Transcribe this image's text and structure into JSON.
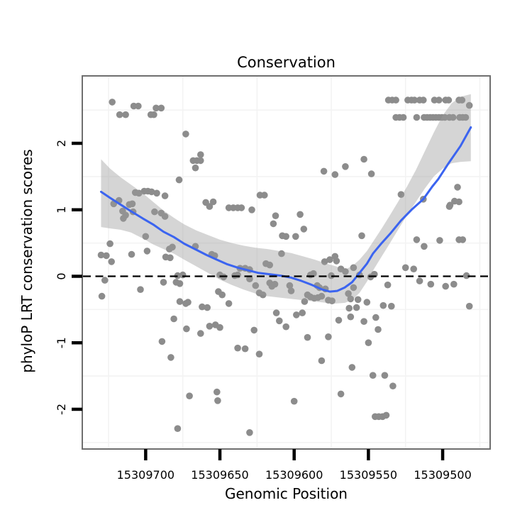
{
  "title": "Conservation",
  "x_axis": {
    "label": "Genomic Position",
    "ticks": [
      15309700,
      15309650,
      15309600,
      15309550,
      15309500
    ],
    "tick_labels": [
      "15309700",
      "15309650",
      "15309600",
      "15309550",
      "15309500"
    ],
    "reversed": true,
    "domain_left": 15309742.2,
    "domain_right": 15309468.5,
    "minor_gridlines": [
      15309725,
      15309675,
      15309625,
      15309575,
      15309525,
      15309475
    ]
  },
  "y_axis": {
    "label": "phyloP LRT conservation scores",
    "ticks": [
      2,
      1,
      0,
      -1,
      -2
    ],
    "tick_labels": [
      "2",
      "1",
      "0",
      "-1",
      "-2"
    ],
    "domain_top": 3.003,
    "domain_bottom": -2.587,
    "minor_gridlines": [
      2.5,
      1.5,
      0.5,
      -0.5,
      -1.5,
      -2.5
    ]
  },
  "colors": {
    "background": "#ffffff",
    "panel_border": "#6f6f6f",
    "gridline": "#f3f3f3",
    "point": "#8c8c8c",
    "smooth_line": "#3b64f0",
    "ribbon": "#9c9c9c",
    "reference_line": "#000000",
    "tick_mark": "#000000",
    "text": "#000000"
  },
  "chart_data": {
    "type": "scatter",
    "title": "Conservation",
    "xlabel": "Genomic Position",
    "ylabel": "phyloP LRT conservation scores",
    "x_reversed": true,
    "xlim": [
      15309742.2,
      15309468.5
    ],
    "ylim": [
      -2.587,
      3.003
    ],
    "reference_line_y": 0,
    "points": [
      [
        15309722.5,
        2.62
      ],
      [
        15309717.5,
        2.43
      ],
      [
        15309713.5,
        2.43
      ],
      [
        15309708,
        2.56
      ],
      [
        15309705,
        2.56
      ],
      [
        15309696.5,
        2.43
      ],
      [
        15309694.5,
        2.43
      ],
      [
        15309693,
        2.53
      ],
      [
        15309689.5,
        2.53
      ],
      [
        15309673,
        2.14
      ],
      [
        15309663,
        1.83
      ],
      [
        15309668,
        1.74
      ],
      [
        15309665.5,
        1.74
      ],
      [
        15309663,
        1.74
      ],
      [
        15309666.5,
        1.63
      ],
      [
        15309677.5,
        1.45
      ],
      [
        15309707,
        1.26
      ],
      [
        15309704.5,
        1.25
      ],
      [
        15309701,
        1.28
      ],
      [
        15309698.5,
        1.28
      ],
      [
        15309696,
        1.27
      ],
      [
        15309692.5,
        1.25
      ],
      [
        15309687,
        1.21
      ],
      [
        15309623,
        1.22
      ],
      [
        15309620,
        1.22
      ],
      [
        15309580,
        1.58
      ],
      [
        15309572.5,
        1.53
      ],
      [
        15309565.5,
        1.65
      ],
      [
        15309553,
        1.76
      ],
      [
        15309548,
        1.54
      ],
      [
        15309536.5,
        2.65
      ],
      [
        15309534,
        2.65
      ],
      [
        15309531.5,
        2.65
      ],
      [
        15309523.5,
        2.65
      ],
      [
        15309521,
        2.65
      ],
      [
        15309519,
        2.65
      ],
      [
        15309515.5,
        2.65
      ],
      [
        15309513,
        2.65
      ],
      [
        15309505.5,
        2.65
      ],
      [
        15309502.5,
        2.65
      ],
      [
        15309498,
        2.65
      ],
      [
        15309496,
        2.65
      ],
      [
        15309489,
        2.65
      ],
      [
        15309487,
        2.65
      ],
      [
        15309482,
        2.57
      ],
      [
        15309531.5,
        2.39
      ],
      [
        15309529,
        2.39
      ],
      [
        15309526.5,
        2.39
      ],
      [
        15309517.5,
        2.39
      ],
      [
        15309512.5,
        2.39
      ],
      [
        15309510.5,
        2.39
      ],
      [
        15309508.5,
        2.39
      ],
      [
        15309506.5,
        2.39
      ],
      [
        15309504.5,
        2.39
      ],
      [
        15309502.5,
        2.39
      ],
      [
        15309500.5,
        2.39
      ],
      [
        15309498.5,
        2.39
      ],
      [
        15309495.5,
        2.39
      ],
      [
        15309493,
        2.39
      ],
      [
        15309488.5,
        2.39
      ],
      [
        15309486.5,
        2.39
      ],
      [
        15309484.5,
        2.39
      ],
      [
        15309490,
        1.34
      ],
      [
        15309492,
        1.13
      ],
      [
        15309495.5,
        1.05
      ],
      [
        15309489,
        1.12
      ],
      [
        15309495,
        1.07
      ],
      [
        15309513,
        1.16
      ],
      [
        15309528,
        1.23
      ],
      [
        15309502,
        0.54
      ],
      [
        15309489,
        0.55
      ],
      [
        15309486.5,
        0.55
      ],
      [
        15309554.5,
        0.61
      ],
      [
        15309517.5,
        0.55
      ],
      [
        15309512.5,
        0.45
      ],
      [
        15309721.5,
        1.09
      ],
      [
        15309718,
        1.14
      ],
      [
        15309711,
        1.08
      ],
      [
        15309709,
        1.09
      ],
      [
        15309715.5,
        0.98
      ],
      [
        15309713.5,
        0.92
      ],
      [
        15309715,
        0.87
      ],
      [
        15309708.5,
        0.97
      ],
      [
        15309694,
        0.97
      ],
      [
        15309689.5,
        0.95
      ],
      [
        15309687,
        0.9
      ],
      [
        15309644,
        1.03
      ],
      [
        15309641,
        1.03
      ],
      [
        15309638,
        1.03
      ],
      [
        15309635.5,
        1.03
      ],
      [
        15309628.5,
        1.0
      ],
      [
        15309659.5,
        1.11
      ],
      [
        15309657,
        1.05
      ],
      [
        15309654.5,
        1.12
      ],
      [
        15309612.5,
        0.91
      ],
      [
        15309596,
        0.93
      ],
      [
        15309614,
        0.79
      ],
      [
        15309593.5,
        0.71
      ],
      [
        15309608,
        0.61
      ],
      [
        15309605.5,
        0.6
      ],
      [
        15309599,
        0.6
      ],
      [
        15309700,
        0.6
      ],
      [
        15309724,
        0.49
      ],
      [
        15309730,
        0.32
      ],
      [
        15309726.5,
        0.31
      ],
      [
        15309723,
        0.22
      ],
      [
        15309709.5,
        0.33
      ],
      [
        15309699,
        0.38
      ],
      [
        15309684,
        0.41
      ],
      [
        15309682,
        0.44
      ],
      [
        15309686.5,
        0.29
      ],
      [
        15309683.5,
        0.28
      ],
      [
        15309666.5,
        0.45
      ],
      [
        15309655.5,
        0.33
      ],
      [
        15309653.5,
        0.31
      ],
      [
        15309619,
        0.19
      ],
      [
        15309616.5,
        0.17
      ],
      [
        15309572.5,
        0.3
      ],
      [
        15309576,
        0.25
      ],
      [
        15309579.5,
        0.22
      ],
      [
        15309571.5,
        0.23
      ],
      [
        15309568.5,
        0.11
      ],
      [
        15309565.5,
        0.07
      ],
      [
        15309678.5,
        0.01
      ],
      [
        15309675,
        0.02
      ],
      [
        15309727.5,
        -0.06
      ],
      [
        15309688,
        -0.09
      ],
      [
        15309679.5,
        -0.09
      ],
      [
        15309677,
        -0.11
      ],
      [
        15309703.5,
        -0.2
      ],
      [
        15309729.5,
        -0.3
      ],
      [
        15309677,
        -0.38
      ],
      [
        15309673,
        -0.41
      ],
      [
        15309671.5,
        -0.39
      ],
      [
        15309662,
        -0.46
      ],
      [
        15309658.5,
        -0.47
      ],
      [
        15309681,
        -0.64
      ],
      [
        15309657,
        -0.75
      ],
      [
        15309653,
        -0.73
      ],
      [
        15309650,
        0.02
      ],
      [
        15309647.5,
        -0.01
      ],
      [
        15309636.5,
        0.12
      ],
      [
        15309633,
        0.12
      ],
      [
        15309630,
        0.1
      ],
      [
        15309640,
        0.01
      ],
      [
        15309638,
        0.02
      ],
      [
        15309630,
        -0.04
      ],
      [
        15309626,
        -0.14
      ],
      [
        15309623.5,
        -0.25
      ],
      [
        15309621,
        -0.28
      ],
      [
        15309616.5,
        -0.1
      ],
      [
        15309615,
        -0.15
      ],
      [
        15309613,
        -0.12
      ],
      [
        15309608.5,
        0.34
      ],
      [
        15309603,
        -0.14
      ],
      [
        15309602,
        -0.22
      ],
      [
        15309589,
        0.02
      ],
      [
        15309587,
        0.04
      ],
      [
        15309575,
        0.01
      ],
      [
        15309591,
        -0.28
      ],
      [
        15309589,
        -0.31
      ],
      [
        15309586.5,
        -0.33
      ],
      [
        15309584,
        -0.32
      ],
      [
        15309581.5,
        -0.3
      ],
      [
        15309577,
        -0.36
      ],
      [
        15309574.5,
        -0.37
      ],
      [
        15309593,
        -0.38
      ],
      [
        15309644,
        -0.41
      ],
      [
        15309648.5,
        -0.28
      ],
      [
        15309651,
        -0.23
      ],
      [
        15309584.5,
        -0.14
      ],
      [
        15309583,
        -0.17
      ],
      [
        15309579,
        -0.19
      ],
      [
        15309612,
        -0.55
      ],
      [
        15309610,
        -0.67
      ],
      [
        15309598.5,
        -0.58
      ],
      [
        15309594.5,
        -0.55
      ],
      [
        15309570,
        -0.66
      ],
      [
        15309650,
        -0.77
      ],
      [
        15309627,
        -0.81
      ],
      [
        15309605.5,
        -0.76
      ],
      [
        15309591,
        -0.92
      ],
      [
        15309577,
        -0.91
      ],
      [
        15309638,
        -1.08
      ],
      [
        15309633,
        -1.09
      ],
      [
        15309623.5,
        -1.17
      ],
      [
        15309581.5,
        -1.27
      ],
      [
        15309689,
        -0.98
      ],
      [
        15309683,
        -1.22
      ],
      [
        15309672.5,
        -0.79
      ],
      [
        15309663,
        -0.86
      ],
      [
        15309561,
        -1.37
      ],
      [
        15309543.5,
        -0.8
      ],
      [
        15309550,
        -1.0
      ],
      [
        15309547,
        -1.49
      ],
      [
        15309539,
        -1.49
      ],
      [
        15309533.5,
        -1.65
      ],
      [
        15309545.5,
        -2.11
      ],
      [
        15309543,
        -2.11
      ],
      [
        15309540.5,
        -2.11
      ],
      [
        15309538,
        -2.09
      ],
      [
        15309652,
        -1.74
      ],
      [
        15309651.5,
        -1.87
      ],
      [
        15309670.5,
        -1.8
      ],
      [
        15309600,
        -1.88
      ],
      [
        15309568.5,
        -1.77
      ],
      [
        15309630,
        -2.35
      ],
      [
        15309678.5,
        -2.29
      ],
      [
        15309562,
        -0.61
      ],
      [
        15309553,
        -0.68
      ],
      [
        15309545,
        -0.62
      ],
      [
        15309540,
        -0.44
      ],
      [
        15309534.5,
        -0.45
      ],
      [
        15309482,
        -0.45
      ],
      [
        15309484,
        0.01
      ],
      [
        15309525,
        0.13
      ],
      [
        15309519.5,
        0.11
      ],
      [
        15309560,
        0.13
      ],
      [
        15309556,
        0.02
      ],
      [
        15309548.5,
        -0.01
      ],
      [
        15309546,
        0.03
      ],
      [
        15309537,
        -0.13
      ],
      [
        15309515.5,
        -0.07
      ],
      [
        15309508,
        -0.12
      ],
      [
        15309498,
        -0.15
      ],
      [
        15309492.5,
        -0.12
      ],
      [
        15309560,
        -0.17
      ],
      [
        15309563.5,
        -0.26
      ],
      [
        15309562,
        -0.34
      ],
      [
        15309557,
        -0.35
      ],
      [
        15309551,
        -0.39
      ],
      [
        15309558,
        -0.47
      ],
      [
        15309563,
        -0.48
      ]
    ],
    "smooth": [
      [
        15309730,
        1.27
      ],
      [
        15309724,
        1.18
      ],
      [
        15309717,
        1.08
      ],
      [
        15309710,
        0.98
      ],
      [
        15309702,
        0.87
      ],
      [
        15309695,
        0.78
      ],
      [
        15309688,
        0.67
      ],
      [
        15309681,
        0.59
      ],
      [
        15309674,
        0.49
      ],
      [
        15309666,
        0.4
      ],
      [
        15309659,
        0.32
      ],
      [
        15309652,
        0.25
      ],
      [
        15309645,
        0.18
      ],
      [
        15309638,
        0.13
      ],
      [
        15309631,
        0.09
      ],
      [
        15309624,
        0.05
      ],
      [
        15309616,
        0.03
      ],
      [
        15309609,
        0.01
      ],
      [
        15309602,
        -0.02
      ],
      [
        15309595,
        -0.07
      ],
      [
        15309588,
        -0.13
      ],
      [
        15309581,
        -0.2
      ],
      [
        15309576,
        -0.23
      ],
      [
        15309571,
        -0.22
      ],
      [
        15309566,
        -0.17
      ],
      [
        15309561,
        -0.09
      ],
      [
        15309556,
        0.05
      ],
      [
        15309551,
        0.19
      ],
      [
        15309547,
        0.34
      ],
      [
        15309541,
        0.5
      ],
      [
        15309535,
        0.65
      ],
      [
        15309528,
        0.84
      ],
      [
        15309521,
        1.0
      ],
      [
        15309513,
        1.16
      ],
      [
        15309507,
        1.35
      ],
      [
        15309503,
        1.46
      ],
      [
        15309496,
        1.7
      ],
      [
        15309488,
        1.96
      ],
      [
        15309481,
        2.24
      ]
    ],
    "ribbon": [
      [
        15309730,
        0.74,
        1.76
      ],
      [
        15309724,
        0.72,
        1.62
      ],
      [
        15309717,
        0.7,
        1.49
      ],
      [
        15309710,
        0.66,
        1.38
      ],
      [
        15309702,
        0.57,
        1.25
      ],
      [
        15309695,
        0.48,
        1.12
      ],
      [
        15309688,
        0.41,
        0.99
      ],
      [
        15309681,
        0.34,
        0.88
      ],
      [
        15309674,
        0.25,
        0.78
      ],
      [
        15309666,
        0.15,
        0.69
      ],
      [
        15309658,
        0.05,
        0.62
      ],
      [
        15309650,
        -0.05,
        0.55
      ],
      [
        15309642,
        -0.13,
        0.5
      ],
      [
        15309634,
        -0.2,
        0.46
      ],
      [
        15309626,
        -0.26,
        0.43
      ],
      [
        15309618,
        -0.3,
        0.41
      ],
      [
        15309610,
        -0.32,
        0.38
      ],
      [
        15309602,
        -0.34,
        0.35
      ],
      [
        15309594,
        -0.36,
        0.3
      ],
      [
        15309586,
        -0.38,
        0.25
      ],
      [
        15309578,
        -0.4,
        0.19
      ],
      [
        15309572,
        -0.41,
        0.15
      ],
      [
        15309566,
        -0.4,
        0.1
      ],
      [
        15309561,
        -0.36,
        0.15
      ],
      [
        15309556,
        -0.25,
        0.25
      ],
      [
        15309551,
        -0.08,
        0.38
      ],
      [
        15309546,
        0.12,
        0.55
      ],
      [
        15309541,
        0.3,
        0.72
      ],
      [
        15309536,
        0.48,
        0.9
      ],
      [
        15309530,
        0.7,
        1.12
      ],
      [
        15309524,
        0.92,
        1.35
      ],
      [
        15309518,
        1.12,
        1.6
      ],
      [
        15309512,
        1.32,
        1.88
      ],
      [
        15309506,
        1.5,
        2.16
      ],
      [
        15309500,
        1.62,
        2.42
      ],
      [
        15309494,
        1.7,
        2.6
      ],
      [
        15309488,
        1.72,
        2.7
      ],
      [
        15309481,
        1.73,
        2.74
      ]
    ]
  }
}
